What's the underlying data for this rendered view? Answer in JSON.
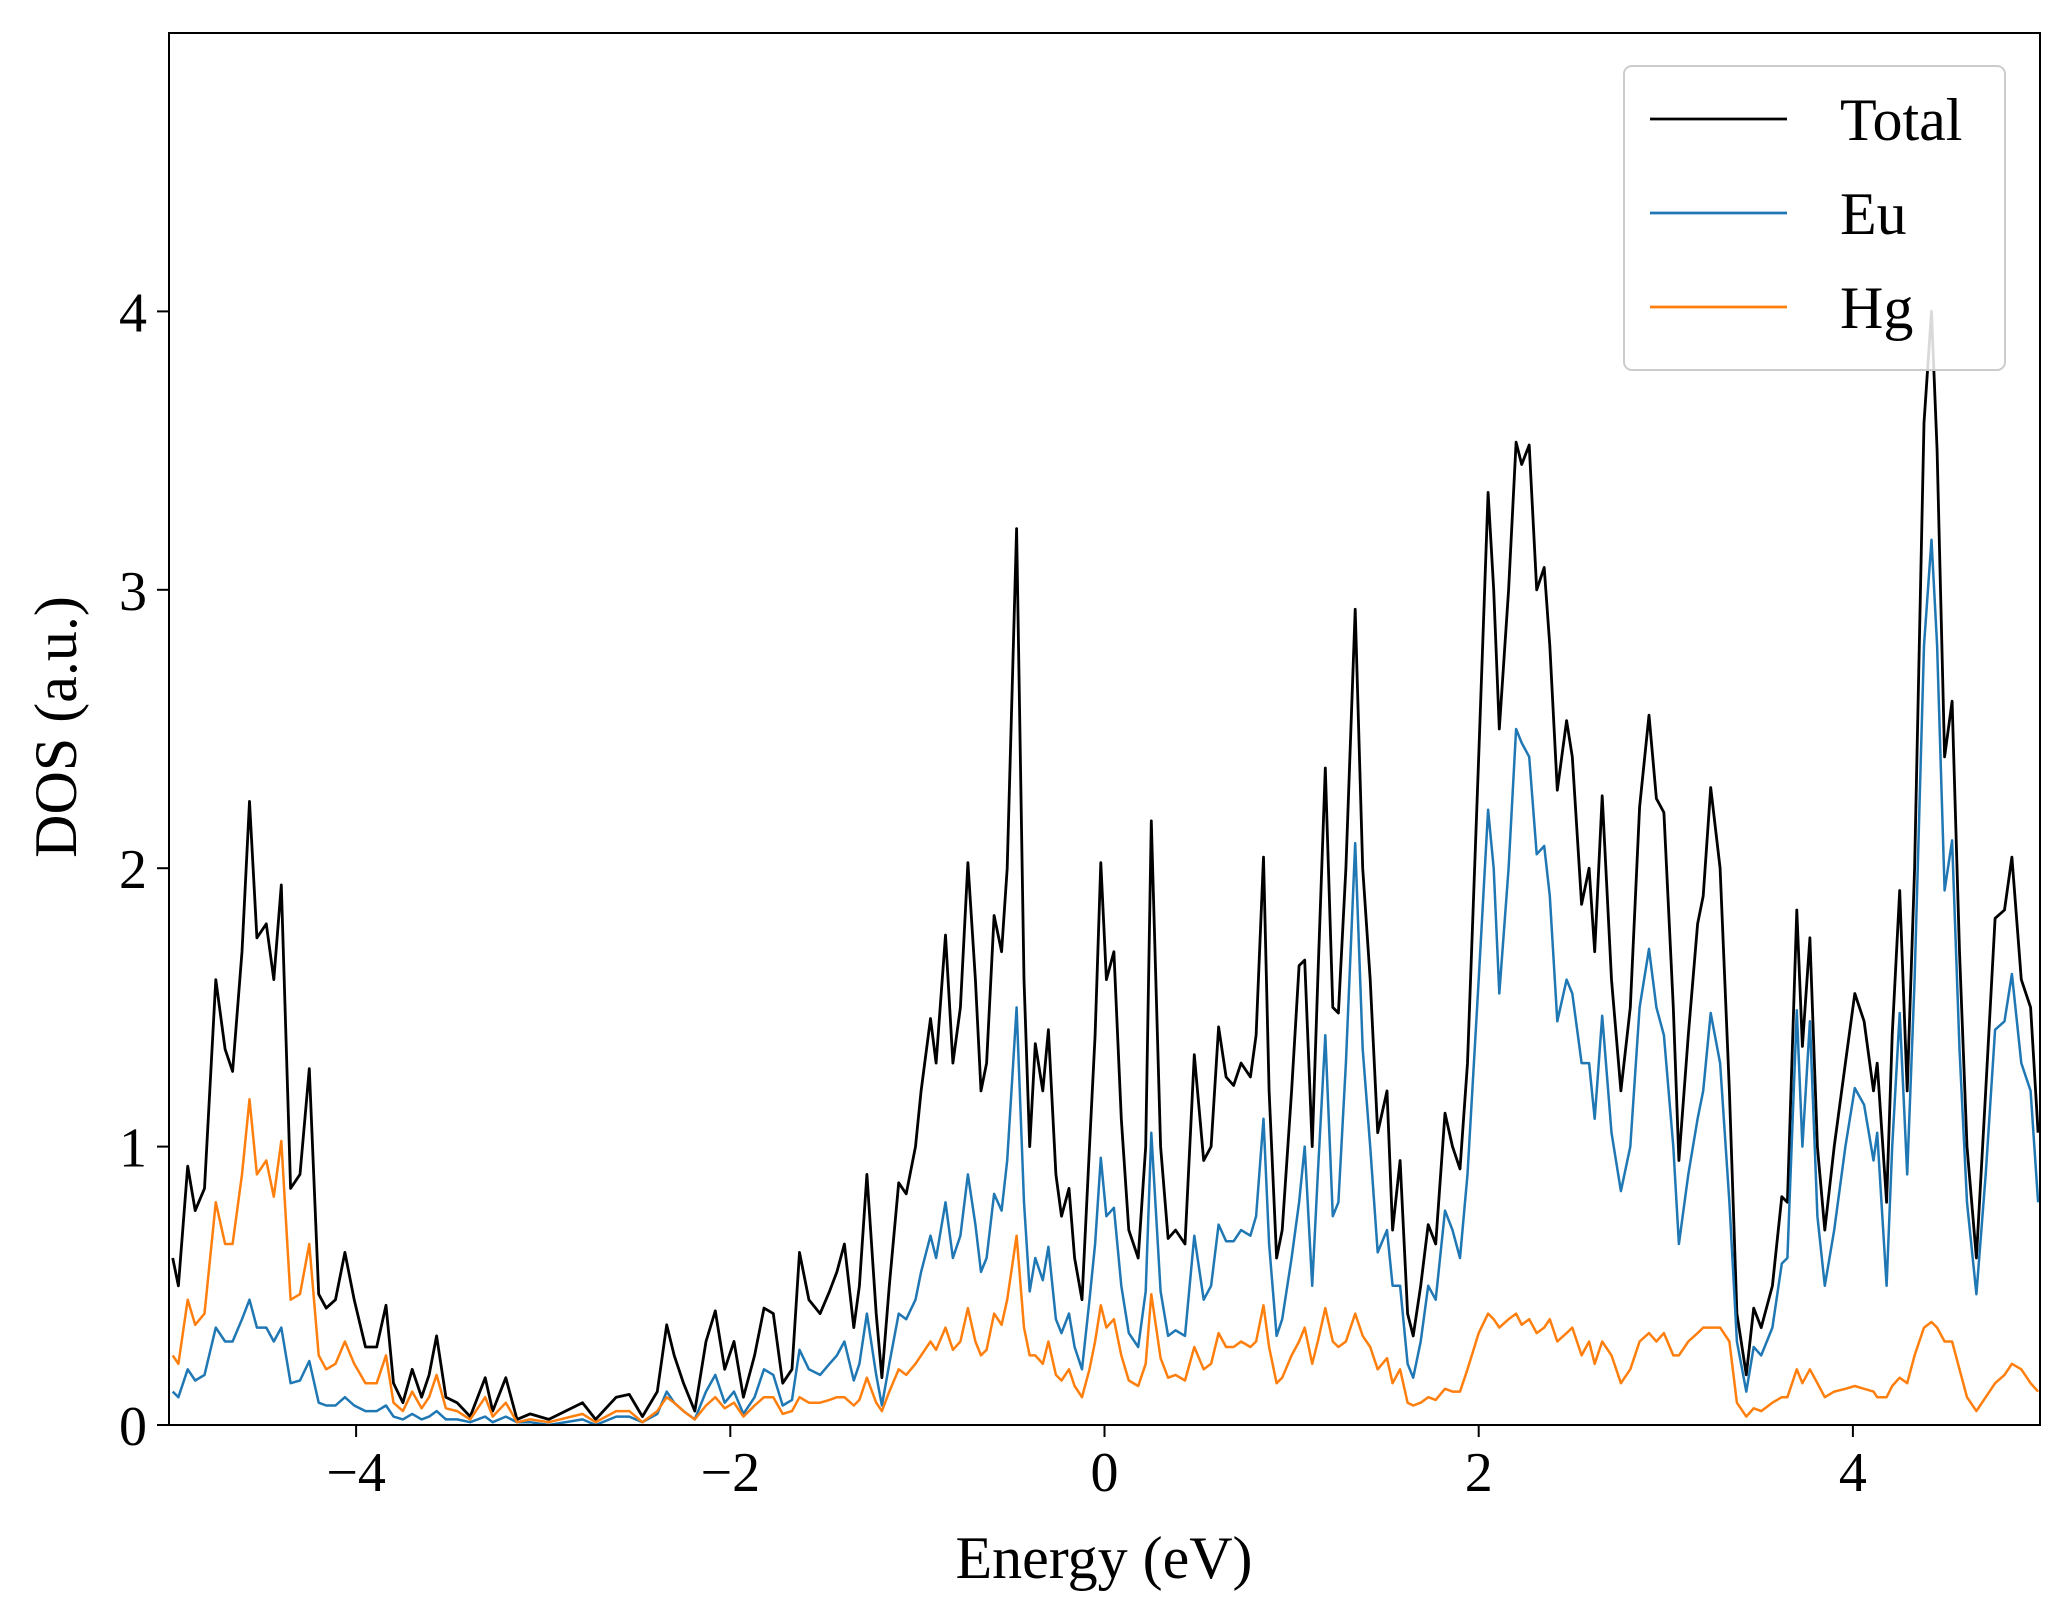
{
  "chart_data": {
    "type": "line",
    "xlabel": "Energy (eV)",
    "ylabel": "DOS (a.u.)",
    "xlim": [
      -5,
      5
    ],
    "ylim": [
      0,
      5
    ],
    "xticks": [
      {
        "value": -4,
        "label": "−4"
      },
      {
        "value": -2,
        "label": "−2"
      },
      0,
      2,
      4
    ],
    "yticks": [
      0,
      1,
      2,
      3,
      4
    ],
    "legend": "upper right",
    "x": [
      -4.98,
      -4.95,
      -4.9,
      -4.86,
      -4.81,
      -4.75,
      -4.7,
      -4.66,
      -4.61,
      -4.57,
      -4.53,
      -4.48,
      -4.44,
      -4.4,
      -4.35,
      -4.3,
      -4.25,
      -4.2,
      -4.16,
      -4.11,
      -4.06,
      -4.01,
      -3.95,
      -3.89,
      -3.84,
      -3.8,
      -3.75,
      -3.7,
      -3.65,
      -3.61,
      -3.57,
      -3.52,
      -3.46,
      -3.39,
      -3.31,
      -3.27,
      -3.2,
      -3.14,
      -3.07,
      -2.97,
      -2.79,
      -2.72,
      -2.61,
      -2.54,
      -2.47,
      -2.39,
      -2.34,
      -2.3,
      -2.25,
      -2.19,
      -2.13,
      -2.08,
      -2.03,
      -1.98,
      -1.93,
      -1.87,
      -1.82,
      -1.77,
      -1.72,
      -1.67,
      -1.63,
      -1.58,
      -1.52,
      -1.47,
      -1.43,
      -1.39,
      -1.34,
      -1.31,
      -1.27,
      -1.22,
      -1.19,
      -1.15,
      -1.1,
      -1.06,
      -1.01,
      -0.98,
      -0.93,
      -0.9,
      -0.85,
      -0.81,
      -0.77,
      -0.73,
      -0.69,
      -0.66,
      -0.63,
      -0.59,
      -0.55,
      -0.52,
      -0.47,
      -0.43,
      -0.4,
      -0.37,
      -0.33,
      -0.3,
      -0.26,
      -0.23,
      -0.19,
      -0.16,
      -0.12,
      -0.08,
      -0.05,
      -0.02,
      0.01,
      0.05,
      0.09,
      0.13,
      0.18,
      0.22,
      0.25,
      0.3,
      0.34,
      0.38,
      0.43,
      0.48,
      0.53,
      0.57,
      0.61,
      0.65,
      0.69,
      0.73,
      0.78,
      0.81,
      0.85,
      0.88,
      0.92,
      0.95,
      1.0,
      1.04,
      1.07,
      1.11,
      1.14,
      1.18,
      1.22,
      1.25,
      1.29,
      1.34,
      1.38,
      1.42,
      1.46,
      1.51,
      1.54,
      1.58,
      1.62,
      1.65,
      1.69,
      1.73,
      1.77,
      1.82,
      1.86,
      1.9,
      1.94,
      2.0,
      2.05,
      2.08,
      2.11,
      2.16,
      2.2,
      2.23,
      2.27,
      2.31,
      2.35,
      2.38,
      2.42,
      2.47,
      2.5,
      2.55,
      2.59,
      2.62,
      2.66,
      2.71,
      2.76,
      2.81,
      2.86,
      2.91,
      2.95,
      2.99,
      3.04,
      3.07,
      3.12,
      3.17,
      3.2,
      3.24,
      3.29,
      3.34,
      3.38,
      3.43,
      3.47,
      3.51,
      3.57,
      3.62,
      3.65,
      3.7,
      3.73,
      3.77,
      3.81,
      3.85,
      3.9,
      3.96,
      4.01,
      4.06,
      4.11,
      4.13,
      4.18,
      4.21,
      4.25,
      4.29,
      4.33,
      4.38,
      4.42,
      4.45,
      4.49,
      4.53,
      4.57,
      4.61,
      4.66,
      4.71,
      4.76,
      4.81,
      4.85,
      4.9,
      4.95,
      4.99
    ],
    "series": [
      {
        "name": "Total",
        "color": "#000000",
        "values": [
          0.6,
          0.5,
          0.93,
          0.77,
          0.85,
          1.6,
          1.35,
          1.27,
          1.7,
          2.24,
          1.75,
          1.8,
          1.6,
          1.94,
          0.85,
          0.9,
          1.28,
          0.47,
          0.42,
          0.45,
          0.62,
          0.45,
          0.28,
          0.28,
          0.43,
          0.15,
          0.08,
          0.2,
          0.1,
          0.18,
          0.32,
          0.1,
          0.08,
          0.03,
          0.17,
          0.05,
          0.17,
          0.02,
          0.04,
          0.02,
          0.08,
          0.02,
          0.1,
          0.11,
          0.03,
          0.12,
          0.36,
          0.25,
          0.15,
          0.05,
          0.3,
          0.41,
          0.2,
          0.3,
          0.1,
          0.25,
          0.42,
          0.4,
          0.15,
          0.2,
          0.62,
          0.45,
          0.4,
          0.48,
          0.55,
          0.65,
          0.35,
          0.5,
          0.9,
          0.4,
          0.17,
          0.5,
          0.87,
          0.83,
          1.0,
          1.2,
          1.46,
          1.3,
          1.76,
          1.3,
          1.5,
          2.02,
          1.6,
          1.2,
          1.3,
          1.83,
          1.7,
          2.0,
          3.22,
          1.6,
          1.0,
          1.37,
          1.2,
          1.42,
          0.9,
          0.75,
          0.85,
          0.6,
          0.45,
          1.0,
          1.4,
          2.02,
          1.6,
          1.7,
          1.1,
          0.7,
          0.6,
          1.0,
          2.17,
          1.0,
          0.67,
          0.7,
          0.65,
          1.33,
          0.95,
          1.0,
          1.43,
          1.25,
          1.22,
          1.3,
          1.25,
          1.4,
          2.04,
          1.2,
          0.6,
          0.7,
          1.2,
          1.65,
          1.67,
          1.0,
          1.6,
          2.36,
          1.5,
          1.48,
          2.0,
          2.93,
          2.0,
          1.6,
          1.05,
          1.2,
          0.7,
          0.95,
          0.4,
          0.32,
          0.5,
          0.72,
          0.65,
          1.12,
          1.0,
          0.92,
          1.3,
          2.4,
          3.35,
          3.0,
          2.5,
          3.0,
          3.53,
          3.45,
          3.52,
          3.0,
          3.08,
          2.8,
          2.28,
          2.53,
          2.4,
          1.87,
          2.0,
          1.7,
          2.26,
          1.6,
          1.2,
          1.5,
          2.22,
          2.55,
          2.25,
          2.2,
          1.5,
          0.95,
          1.4,
          1.8,
          1.9,
          2.29,
          2.0,
          1.2,
          0.4,
          0.18,
          0.42,
          0.35,
          0.5,
          0.82,
          0.8,
          1.85,
          1.36,
          1.75,
          1.0,
          0.7,
          1.0,
          1.3,
          1.55,
          1.45,
          1.2,
          1.3,
          0.8,
          1.4,
          1.92,
          1.2,
          2.0,
          3.6,
          4.0,
          3.5,
          2.4,
          2.6,
          1.7,
          1.0,
          0.6,
          1.2,
          1.82,
          1.85,
          2.04,
          1.6,
          1.5,
          1.05
        ]
      },
      {
        "name": "Eu",
        "color": "#1f77b4",
        "values": [
          0.12,
          0.1,
          0.2,
          0.16,
          0.18,
          0.35,
          0.3,
          0.3,
          0.38,
          0.45,
          0.35,
          0.35,
          0.3,
          0.35,
          0.15,
          0.16,
          0.23,
          0.08,
          0.07,
          0.07,
          0.1,
          0.07,
          0.05,
          0.05,
          0.07,
          0.03,
          0.02,
          0.04,
          0.02,
          0.03,
          0.05,
          0.02,
          0.02,
          0.01,
          0.03,
          0.01,
          0.03,
          0.01,
          0.01,
          0,
          0.02,
          0,
          0.03,
          0.03,
          0.01,
          0.04,
          0.12,
          0.08,
          0.05,
          0.02,
          0.12,
          0.18,
          0.08,
          0.12,
          0.04,
          0.1,
          0.2,
          0.18,
          0.07,
          0.09,
          0.27,
          0.2,
          0.18,
          0.22,
          0.25,
          0.3,
          0.16,
          0.22,
          0.4,
          0.18,
          0.07,
          0.22,
          0.4,
          0.38,
          0.45,
          0.55,
          0.68,
          0.6,
          0.8,
          0.6,
          0.68,
          0.9,
          0.72,
          0.55,
          0.6,
          0.83,
          0.77,
          0.95,
          1.5,
          0.8,
          0.48,
          0.6,
          0.52,
          0.64,
          0.38,
          0.33,
          0.4,
          0.28,
          0.2,
          0.45,
          0.65,
          0.96,
          0.75,
          0.78,
          0.5,
          0.33,
          0.28,
          0.48,
          1.05,
          0.48,
          0.32,
          0.34,
          0.32,
          0.68,
          0.45,
          0.5,
          0.72,
          0.66,
          0.66,
          0.7,
          0.68,
          0.75,
          1.1,
          0.65,
          0.32,
          0.38,
          0.6,
          0.8,
          1.0,
          0.5,
          0.9,
          1.4,
          0.75,
          0.8,
          1.3,
          2.09,
          1.35,
          1.0,
          0.62,
          0.7,
          0.5,
          0.5,
          0.22,
          0.17,
          0.3,
          0.5,
          0.45,
          0.77,
          0.7,
          0.6,
          0.9,
          1.6,
          2.21,
          2.0,
          1.55,
          2.0,
          2.5,
          2.45,
          2.4,
          2.05,
          2.08,
          1.9,
          1.45,
          1.6,
          1.55,
          1.3,
          1.3,
          1.1,
          1.47,
          1.05,
          0.84,
          1.0,
          1.5,
          1.71,
          1.5,
          1.4,
          1.0,
          0.65,
          0.9,
          1.1,
          1.2,
          1.48,
          1.3,
          0.8,
          0.3,
          0.12,
          0.28,
          0.25,
          0.35,
          0.58,
          0.6,
          1.49,
          1.0,
          1.45,
          0.75,
          0.5,
          0.7,
          1.0,
          1.21,
          1.15,
          0.95,
          1.05,
          0.5,
          1.0,
          1.48,
          0.9,
          1.6,
          2.8,
          3.18,
          2.8,
          1.92,
          2.1,
          1.35,
          0.8,
          0.47,
          0.9,
          1.42,
          1.45,
          1.62,
          1.3,
          1.2,
          0.8
        ]
      },
      {
        "name": "Hg",
        "color": "#ff7f0e",
        "values": [
          0.25,
          0.22,
          0.45,
          0.36,
          0.4,
          0.8,
          0.65,
          0.65,
          0.9,
          1.17,
          0.9,
          0.95,
          0.82,
          1.02,
          0.45,
          0.47,
          0.65,
          0.25,
          0.2,
          0.22,
          0.3,
          0.22,
          0.15,
          0.15,
          0.25,
          0.08,
          0.05,
          0.12,
          0.06,
          0.1,
          0.18,
          0.06,
          0.05,
          0.02,
          0.1,
          0.03,
          0.08,
          0.01,
          0.02,
          0.01,
          0.04,
          0.01,
          0.05,
          0.05,
          0.01,
          0.05,
          0.1,
          0.08,
          0.05,
          0.02,
          0.07,
          0.1,
          0.06,
          0.08,
          0.03,
          0.07,
          0.1,
          0.1,
          0.04,
          0.05,
          0.1,
          0.08,
          0.08,
          0.09,
          0.1,
          0.1,
          0.07,
          0.09,
          0.17,
          0.08,
          0.05,
          0.12,
          0.2,
          0.18,
          0.22,
          0.25,
          0.3,
          0.27,
          0.35,
          0.27,
          0.3,
          0.42,
          0.3,
          0.25,
          0.27,
          0.4,
          0.36,
          0.45,
          0.68,
          0.35,
          0.25,
          0.25,
          0.22,
          0.3,
          0.18,
          0.16,
          0.2,
          0.14,
          0.1,
          0.2,
          0.3,
          0.43,
          0.35,
          0.38,
          0.25,
          0.16,
          0.14,
          0.22,
          0.47,
          0.24,
          0.17,
          0.18,
          0.16,
          0.28,
          0.2,
          0.22,
          0.33,
          0.28,
          0.28,
          0.3,
          0.28,
          0.3,
          0.43,
          0.28,
          0.15,
          0.17,
          0.25,
          0.3,
          0.35,
          0.22,
          0.3,
          0.42,
          0.3,
          0.28,
          0.3,
          0.4,
          0.32,
          0.28,
          0.2,
          0.24,
          0.15,
          0.2,
          0.08,
          0.07,
          0.08,
          0.1,
          0.09,
          0.13,
          0.12,
          0.12,
          0.2,
          0.33,
          0.4,
          0.38,
          0.35,
          0.38,
          0.4,
          0.36,
          0.38,
          0.33,
          0.35,
          0.38,
          0.3,
          0.33,
          0.35,
          0.25,
          0.3,
          0.22,
          0.3,
          0.25,
          0.15,
          0.2,
          0.3,
          0.33,
          0.3,
          0.33,
          0.25,
          0.25,
          0.3,
          0.33,
          0.35,
          0.35,
          0.35,
          0.3,
          0.08,
          0.03,
          0.06,
          0.05,
          0.08,
          0.1,
          0.1,
          0.2,
          0.15,
          0.2,
          0.15,
          0.1,
          0.12,
          0.13,
          0.14,
          0.13,
          0.12,
          0.1,
          0.1,
          0.14,
          0.17,
          0.15,
          0.25,
          0.35,
          0.37,
          0.35,
          0.3,
          0.3,
          0.2,
          0.1,
          0.05,
          0.1,
          0.15,
          0.18,
          0.22,
          0.2,
          0.15,
          0.12
        ]
      }
    ]
  }
}
